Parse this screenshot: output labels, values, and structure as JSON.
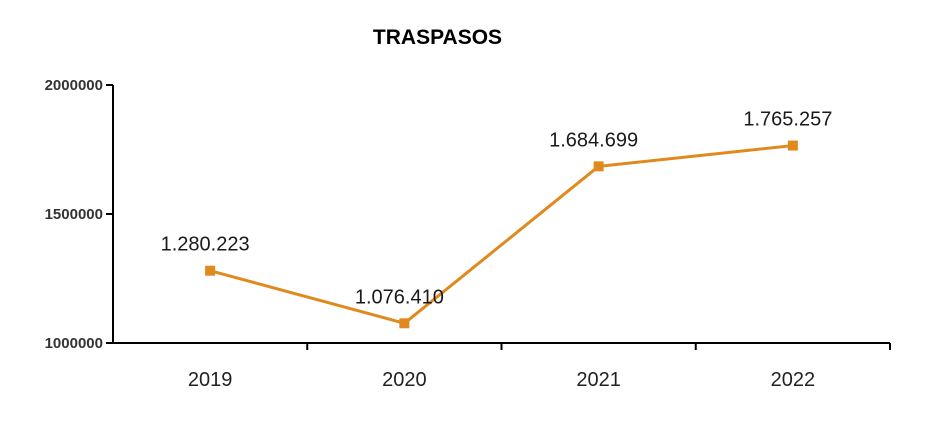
{
  "chart_data": {
    "type": "line",
    "title": "TRASPASOS",
    "xlabel": "",
    "ylabel": "",
    "categories": [
      "2019",
      "2020",
      "2021",
      "2022"
    ],
    "series": [
      {
        "values": [
          1280223,
          1076410,
          1684699,
          1765257
        ],
        "data_labels": [
          "1.280.223",
          "1.076.410",
          "1.684.699",
          "1.765.257"
        ]
      }
    ],
    "ylim": [
      1000000,
      2000000
    ],
    "yticks": [
      {
        "value": 1000000,
        "label": "1000000"
      },
      {
        "value": 1500000,
        "label": "1500000"
      },
      {
        "value": 2000000,
        "label": "2000000"
      }
    ],
    "grid": false,
    "legend": "none",
    "colors": {
      "line": "#E08A1E",
      "axis": "#000000"
    }
  }
}
